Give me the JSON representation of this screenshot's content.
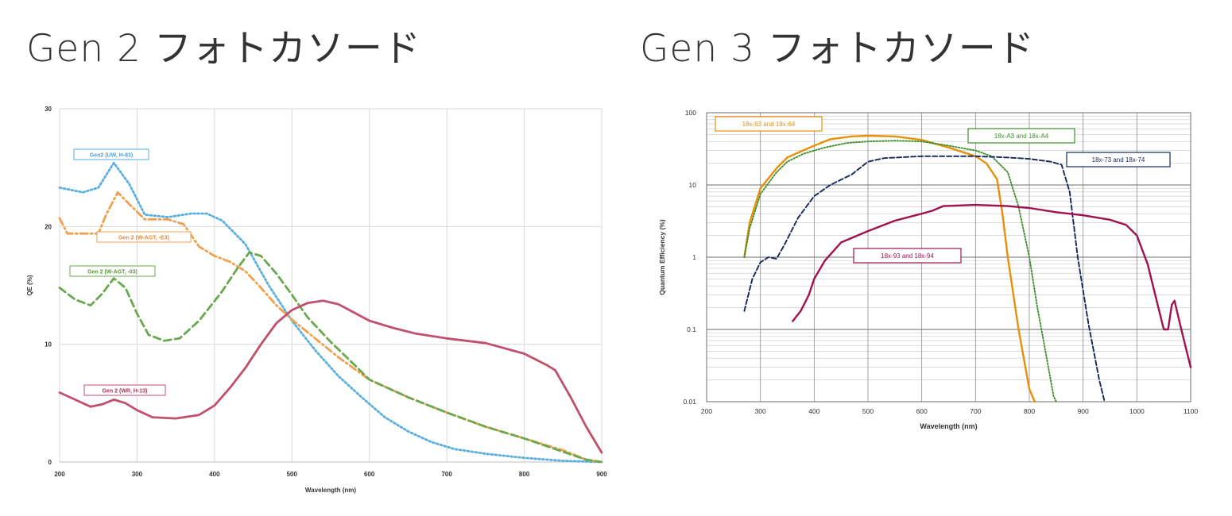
{
  "headings": {
    "left": "Gen 2 フォトカソード",
    "right": "Gen 3 フォトカソード"
  },
  "chart_data": [
    {
      "type": "line",
      "title": "",
      "xlabel": "Wavelength (nm)",
      "ylabel": "QE (%)",
      "xlim": [
        200,
        900
      ],
      "ylim": [
        0,
        30
      ],
      "x_ticks": [
        200,
        300,
        400,
        500,
        600,
        700,
        800,
        900
      ],
      "y_ticks": [
        0,
        10,
        20,
        30
      ],
      "grid": true,
      "legend_position": "inline labels",
      "series": [
        {
          "name": "Gen2 (UW, H-83)",
          "color": "#5aaee0",
          "style": "dotted",
          "label_color": "#4a9fd8",
          "points": [
            [
              200,
              23.3
            ],
            [
              230,
              22.9
            ],
            [
              250,
              23.3
            ],
            [
              270,
              25.4
            ],
            [
              290,
              23.6
            ],
            [
              310,
              21.0
            ],
            [
              340,
              20.8
            ],
            [
              370,
              21.1
            ],
            [
              390,
              21.1
            ],
            [
              410,
              20.5
            ],
            [
              440,
              18.5
            ],
            [
              470,
              15.0
            ],
            [
              500,
              12.0
            ],
            [
              530,
              9.5
            ],
            [
              560,
              7.3
            ],
            [
              590,
              5.5
            ],
            [
              620,
              3.8
            ],
            [
              650,
              2.6
            ],
            [
              680,
              1.7
            ],
            [
              710,
              1.1
            ],
            [
              750,
              0.7
            ],
            [
              800,
              0.35
            ],
            [
              850,
              0.1
            ],
            [
              900,
              0.0
            ]
          ]
        },
        {
          "name": "Gen 2 (W-AGT, -E3)",
          "color": "#f0a050",
          "style": "dash-dot",
          "label_color": "#e88a30",
          "points": [
            [
              200,
              20.7
            ],
            [
              210,
              19.4
            ],
            [
              250,
              19.4
            ],
            [
              260,
              21.0
            ],
            [
              275,
              22.9
            ],
            [
              290,
              21.9
            ],
            [
              310,
              20.6
            ],
            [
              340,
              20.6
            ],
            [
              360,
              20.2
            ],
            [
              380,
              18.3
            ],
            [
              400,
              17.5
            ],
            [
              420,
              17.0
            ],
            [
              440,
              16.2
            ],
            [
              460,
              14.8
            ],
            [
              480,
              13.3
            ],
            [
              500,
              12.1
            ],
            [
              530,
              10.5
            ],
            [
              560,
              8.9
            ],
            [
              600,
              7.0
            ],
            [
              650,
              5.5
            ],
            [
              700,
              4.2
            ],
            [
              750,
              3.0
            ],
            [
              800,
              2.0
            ],
            [
              850,
              1.0
            ],
            [
              880,
              0.2
            ],
            [
              900,
              0.0
            ]
          ]
        },
        {
          "name": "Gen 2 (W-AGT, -03)",
          "color": "#6aa84f",
          "style": "dashed",
          "label_color": "#5a9640",
          "points": [
            [
              200,
              14.8
            ],
            [
              220,
              13.8
            ],
            [
              240,
              13.3
            ],
            [
              255,
              14.3
            ],
            [
              270,
              15.6
            ],
            [
              285,
              14.8
            ],
            [
              300,
              12.6
            ],
            [
              315,
              10.8
            ],
            [
              335,
              10.3
            ],
            [
              355,
              10.5
            ],
            [
              380,
              12.0
            ],
            [
              410,
              14.5
            ],
            [
              430,
              16.5
            ],
            [
              445,
              17.8
            ],
            [
              460,
              17.5
            ],
            [
              480,
              16.0
            ],
            [
              500,
              14.2
            ],
            [
              520,
              12.3
            ],
            [
              550,
              10.2
            ],
            [
              580,
              8.3
            ],
            [
              600,
              7.0
            ],
            [
              650,
              5.5
            ],
            [
              700,
              4.2
            ],
            [
              750,
              3.0
            ],
            [
              800,
              2.0
            ],
            [
              840,
              1.1
            ],
            [
              880,
              0.2
            ],
            [
              900,
              0.0
            ]
          ]
        },
        {
          "name": "Gen 2 (WR, H-13)",
          "color": "#c0506c",
          "style": "solid",
          "label_color": "#b03050",
          "points": [
            [
              200,
              5.9
            ],
            [
              220,
              5.3
            ],
            [
              240,
              4.7
            ],
            [
              255,
              4.9
            ],
            [
              270,
              5.3
            ],
            [
              285,
              5.0
            ],
            [
              300,
              4.4
            ],
            [
              320,
              3.8
            ],
            [
              350,
              3.7
            ],
            [
              380,
              4.0
            ],
            [
              400,
              4.8
            ],
            [
              420,
              6.3
            ],
            [
              440,
              8.0
            ],
            [
              460,
              10.0
            ],
            [
              480,
              11.8
            ],
            [
              500,
              12.9
            ],
            [
              520,
              13.5
            ],
            [
              540,
              13.7
            ],
            [
              560,
              13.4
            ],
            [
              580,
              12.7
            ],
            [
              600,
              12.0
            ],
            [
              630,
              11.4
            ],
            [
              660,
              10.9
            ],
            [
              700,
              10.5
            ],
            [
              750,
              10.1
            ],
            [
              800,
              9.2
            ],
            [
              830,
              8.2
            ],
            [
              840,
              7.8
            ],
            [
              860,
              5.5
            ],
            [
              880,
              3.0
            ],
            [
              900,
              0.8
            ]
          ]
        }
      ]
    },
    {
      "type": "line",
      "title": "",
      "xlabel": "Wavelength (nm)",
      "ylabel": "Quantum Efficiency (%)",
      "xlim": [
        200,
        1100
      ],
      "ylim": [
        0.01,
        100
      ],
      "y_scale": "log",
      "x_ticks": [
        200,
        300,
        400,
        500,
        600,
        700,
        800,
        900,
        1000,
        1100
      ],
      "y_ticks": [
        "0.01",
        "0.1",
        "1",
        "10",
        "100"
      ],
      "grid": true,
      "legend_position": "boxed inline labels",
      "series": [
        {
          "name": "18x-63 and 18x-64",
          "color": "#e8900a",
          "style": "solid",
          "points": [
            [
              270,
              1.0
            ],
            [
              280,
              3.0
            ],
            [
              300,
              9.0
            ],
            [
              330,
              17.0
            ],
            [
              350,
              24.0
            ],
            [
              370,
              28.0
            ],
            [
              400,
              35.0
            ],
            [
              430,
              43.0
            ],
            [
              470,
              47.0
            ],
            [
              500,
              48.0
            ],
            [
              550,
              47.0
            ],
            [
              600,
              42.0
            ],
            [
              650,
              33.0
            ],
            [
              700,
              25.0
            ],
            [
              720,
              20.0
            ],
            [
              740,
              12.0
            ],
            [
              750,
              4.0
            ],
            [
              760,
              1.0
            ],
            [
              780,
              0.1
            ],
            [
              800,
              0.015
            ],
            [
              810,
              0.01
            ]
          ]
        },
        {
          "name": "18x-A3 and 18x-A4",
          "color": "#3d8f2a",
          "style": "dotted",
          "points": [
            [
              270,
              1.0
            ],
            [
              280,
              2.5
            ],
            [
              300,
              7.5
            ],
            [
              330,
              15.0
            ],
            [
              350,
              21.0
            ],
            [
              380,
              27.0
            ],
            [
              420,
              33.0
            ],
            [
              460,
              38.0
            ],
            [
              500,
              40.0
            ],
            [
              550,
              41.0
            ],
            [
              600,
              40.0
            ],
            [
              650,
              35.0
            ],
            [
              700,
              30.0
            ],
            [
              730,
              25.0
            ],
            [
              760,
              15.0
            ],
            [
              780,
              5.0
            ],
            [
              800,
              1.0
            ],
            [
              815,
              0.2
            ],
            [
              830,
              0.05
            ],
            [
              845,
              0.012
            ],
            [
              850,
              0.01
            ]
          ]
        },
        {
          "name": "18x-73 and 18x-74",
          "color": "#14285c",
          "style": "dashed",
          "points": [
            [
              270,
              0.18
            ],
            [
              285,
              0.5
            ],
            [
              300,
              0.85
            ],
            [
              315,
              1.0
            ],
            [
              330,
              0.95
            ],
            [
              345,
              1.5
            ],
            [
              370,
              3.5
            ],
            [
              400,
              7.0
            ],
            [
              430,
              10.0
            ],
            [
              470,
              14.0
            ],
            [
              500,
              21.0
            ],
            [
              530,
              23.5
            ],
            [
              600,
              25.0
            ],
            [
              700,
              25.0
            ],
            [
              760,
              24.0
            ],
            [
              800,
              23.0
            ],
            [
              840,
              21.0
            ],
            [
              860,
              19.0
            ],
            [
              875,
              8.0
            ],
            [
              890,
              1.0
            ],
            [
              910,
              0.12
            ],
            [
              930,
              0.02
            ],
            [
              940,
              0.01
            ]
          ]
        },
        {
          "name": "18x-93 and 18x-94",
          "color": "#a0114f",
          "style": "solid",
          "points": [
            [
              360,
              0.13
            ],
            [
              375,
              0.18
            ],
            [
              390,
              0.3
            ],
            [
              400,
              0.5
            ],
            [
              420,
              0.9
            ],
            [
              450,
              1.6
            ],
            [
              500,
              2.3
            ],
            [
              550,
              3.2
            ],
            [
              600,
              4.0
            ],
            [
              620,
              4.4
            ],
            [
              640,
              5.1
            ],
            [
              700,
              5.3
            ],
            [
              760,
              5.1
            ],
            [
              800,
              4.8
            ],
            [
              850,
              4.2
            ],
            [
              900,
              3.8
            ],
            [
              950,
              3.3
            ],
            [
              980,
              2.8
            ],
            [
              1000,
              2.0
            ],
            [
              1020,
              0.8
            ],
            [
              1040,
              0.2
            ],
            [
              1050,
              0.1
            ],
            [
              1058,
              0.1
            ],
            [
              1065,
              0.22
            ],
            [
              1070,
              0.25
            ],
            [
              1080,
              0.12
            ],
            [
              1090,
              0.06
            ],
            [
              1100,
              0.03
            ]
          ]
        }
      ]
    }
  ]
}
